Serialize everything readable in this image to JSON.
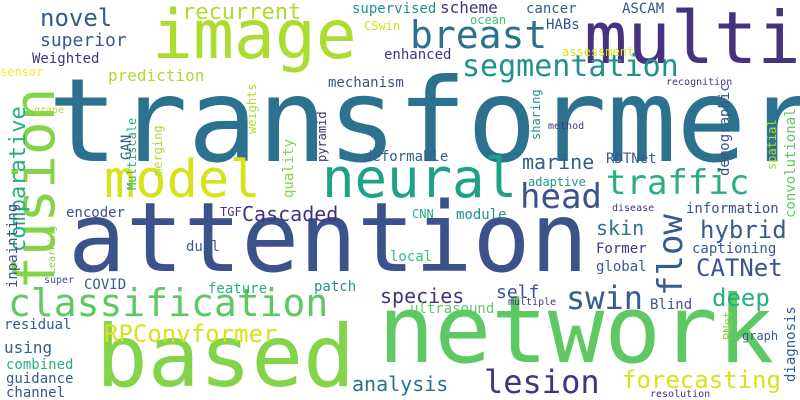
{
  "palette": {
    "dark_purple": "#46327e",
    "indigo": "#3b528b",
    "blue": "#365c8d",
    "steel": "#2c728e",
    "teal": "#21918c",
    "sea": "#1fa088",
    "green": "#28ae80",
    "mid_green": "#3fbc73",
    "bright_green": "#5ec962",
    "lime": "#84d44b",
    "yellow_green": "#addc30",
    "yellow": "#d8e219",
    "bright_yellow": "#fde725"
  },
  "words": [
    {
      "text": "transformer"
    },
    {
      "text": "attention"
    },
    {
      "text": "network"
    },
    {
      "text": "based"
    },
    {
      "text": "image"
    },
    {
      "text": "multi"
    },
    {
      "text": "fusion"
    },
    {
      "text": "neural"
    },
    {
      "text": "model"
    },
    {
      "text": "classification"
    },
    {
      "text": "breast"
    },
    {
      "text": "segmentation"
    },
    {
      "text": "traffic"
    },
    {
      "text": "head"
    },
    {
      "text": "flow"
    },
    {
      "text": "swin"
    },
    {
      "text": "lesion"
    },
    {
      "text": "recurrent"
    },
    {
      "text": "novel"
    },
    {
      "text": "comparative"
    },
    {
      "text": "superior"
    },
    {
      "text": "RPConvformer"
    },
    {
      "text": "Cascaded"
    },
    {
      "text": "hybrid"
    },
    {
      "text": "CATNet"
    },
    {
      "text": "deep"
    },
    {
      "text": "forecasting"
    },
    {
      "text": "analysis"
    },
    {
      "text": "species"
    },
    {
      "text": "skin"
    },
    {
      "text": "marine"
    },
    {
      "text": "self"
    },
    {
      "text": "inpainting"
    },
    {
      "text": "prediction"
    },
    {
      "text": "supervised"
    },
    {
      "text": "scheme"
    },
    {
      "text": "cancer"
    },
    {
      "text": "ASCAM"
    },
    {
      "text": "CSwin"
    },
    {
      "text": "ocean"
    },
    {
      "text": "HABs"
    },
    {
      "text": "Weighted"
    },
    {
      "text": "enhanced"
    },
    {
      "text": "assessment"
    },
    {
      "text": "sensor"
    },
    {
      "text": "mechanism"
    },
    {
      "text": "demographic"
    },
    {
      "text": "grape"
    },
    {
      "text": "recognition"
    },
    {
      "text": "Multiscale"
    },
    {
      "text": "weights"
    },
    {
      "text": "pyramid"
    },
    {
      "text": "merging"
    },
    {
      "text": "GAN"
    },
    {
      "text": "quality"
    },
    {
      "text": "sharing"
    },
    {
      "text": "method"
    },
    {
      "text": "spatial"
    },
    {
      "text": "convolutional"
    },
    {
      "text": "deformable"
    },
    {
      "text": "RDTNet"
    },
    {
      "text": "adaptive"
    },
    {
      "text": "Learning"
    },
    {
      "text": "encoder"
    },
    {
      "text": "TGF"
    },
    {
      "text": "module"
    },
    {
      "text": "disease"
    },
    {
      "text": "information"
    },
    {
      "text": "CNN"
    },
    {
      "text": "dual"
    },
    {
      "text": "local"
    },
    {
      "text": "Former"
    },
    {
      "text": "captioning"
    },
    {
      "text": "global"
    },
    {
      "text": "COVID"
    },
    {
      "text": "feature"
    },
    {
      "text": "patch"
    },
    {
      "text": "super"
    },
    {
      "text": "multiple"
    },
    {
      "text": "ultrasound"
    },
    {
      "text": "Blind"
    },
    {
      "text": "diagnosis"
    },
    {
      "text": "residual"
    },
    {
      "text": "using"
    },
    {
      "text": "combined"
    },
    {
      "text": "guidance"
    },
    {
      "text": "channel"
    },
    {
      "text": "graph"
    },
    {
      "text": "PNet"
    },
    {
      "text": "resolution"
    }
  ]
}
